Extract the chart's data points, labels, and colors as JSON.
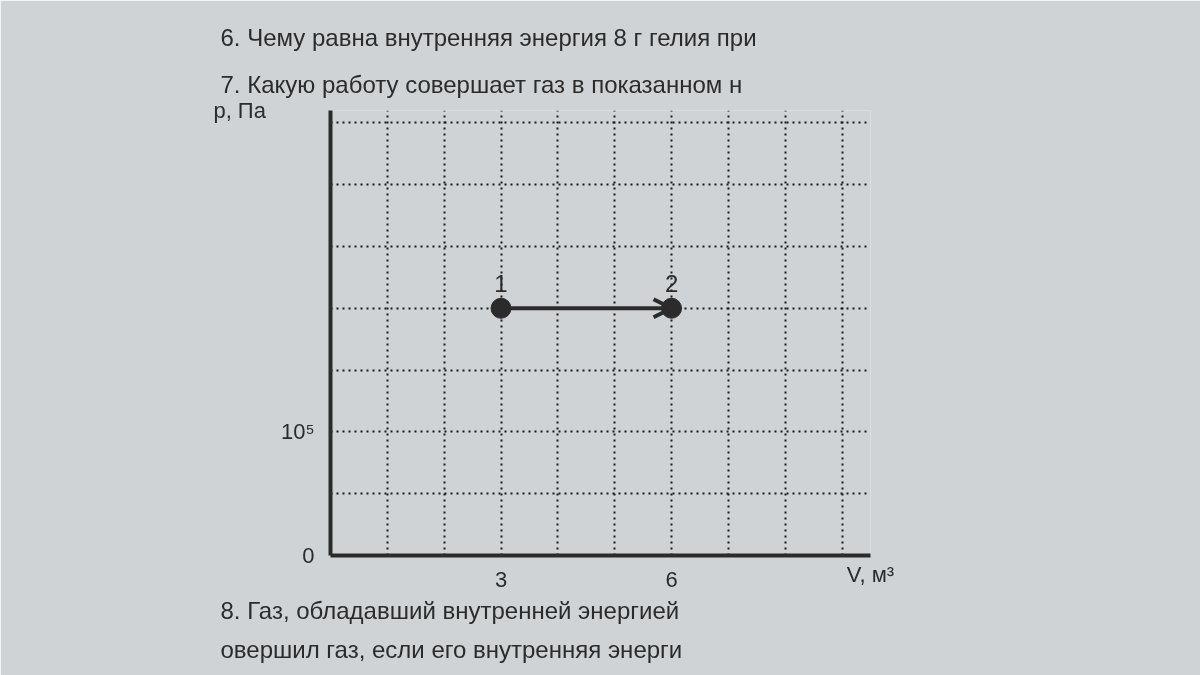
{
  "chart_data": {
    "type": "line",
    "title": "7. Какую работу совершает газ в показанном н",
    "xlabel": "V, м³",
    "ylabel": "p, Па",
    "x": [
      3,
      6
    ],
    "series": [
      {
        "color": "#2b2b2b",
        "values": [
          200000,
          200000
        ]
      }
    ],
    "xlim": [
      0,
      9.5
    ],
    "ylim": [
      0,
      360000
    ],
    "xticks": [
      {
        "value": 1,
        "label": null
      },
      {
        "value": 2,
        "label": null
      },
      3,
      {
        "value": 4,
        "label": null
      },
      {
        "value": 5,
        "label": null
      },
      6,
      {
        "value": 7,
        "label": null
      },
      {
        "value": 8,
        "label": null
      },
      {
        "value": 9,
        "label": null
      }
    ],
    "yticks": [
      0,
      {
        "value": 50000,
        "label": null
      },
      {
        "value": 100000,
        "label": "10⁵"
      },
      {
        "value": 150000,
        "label": null
      },
      {
        "value": 200000,
        "label": null
      },
      {
        "value": 250000,
        "label": null
      },
      {
        "value": 300000,
        "label": null
      },
      {
        "value": 350000,
        "label": null
      }
    ],
    "grid": true,
    "marker": "circle",
    "line_style": "solid",
    "annotations": [
      "6. Чему равна внутренняя энергия 8 г гелия при",
      {
        "text": "1",
        "x": 3,
        "y": 200000
      },
      {
        "text": "2",
        "x": 6,
        "y": 200000
      },
      "8. Газ, обладавший внутренней энергией",
      "овершил газ, если его внутренняя энерги"
    ]
  }
}
